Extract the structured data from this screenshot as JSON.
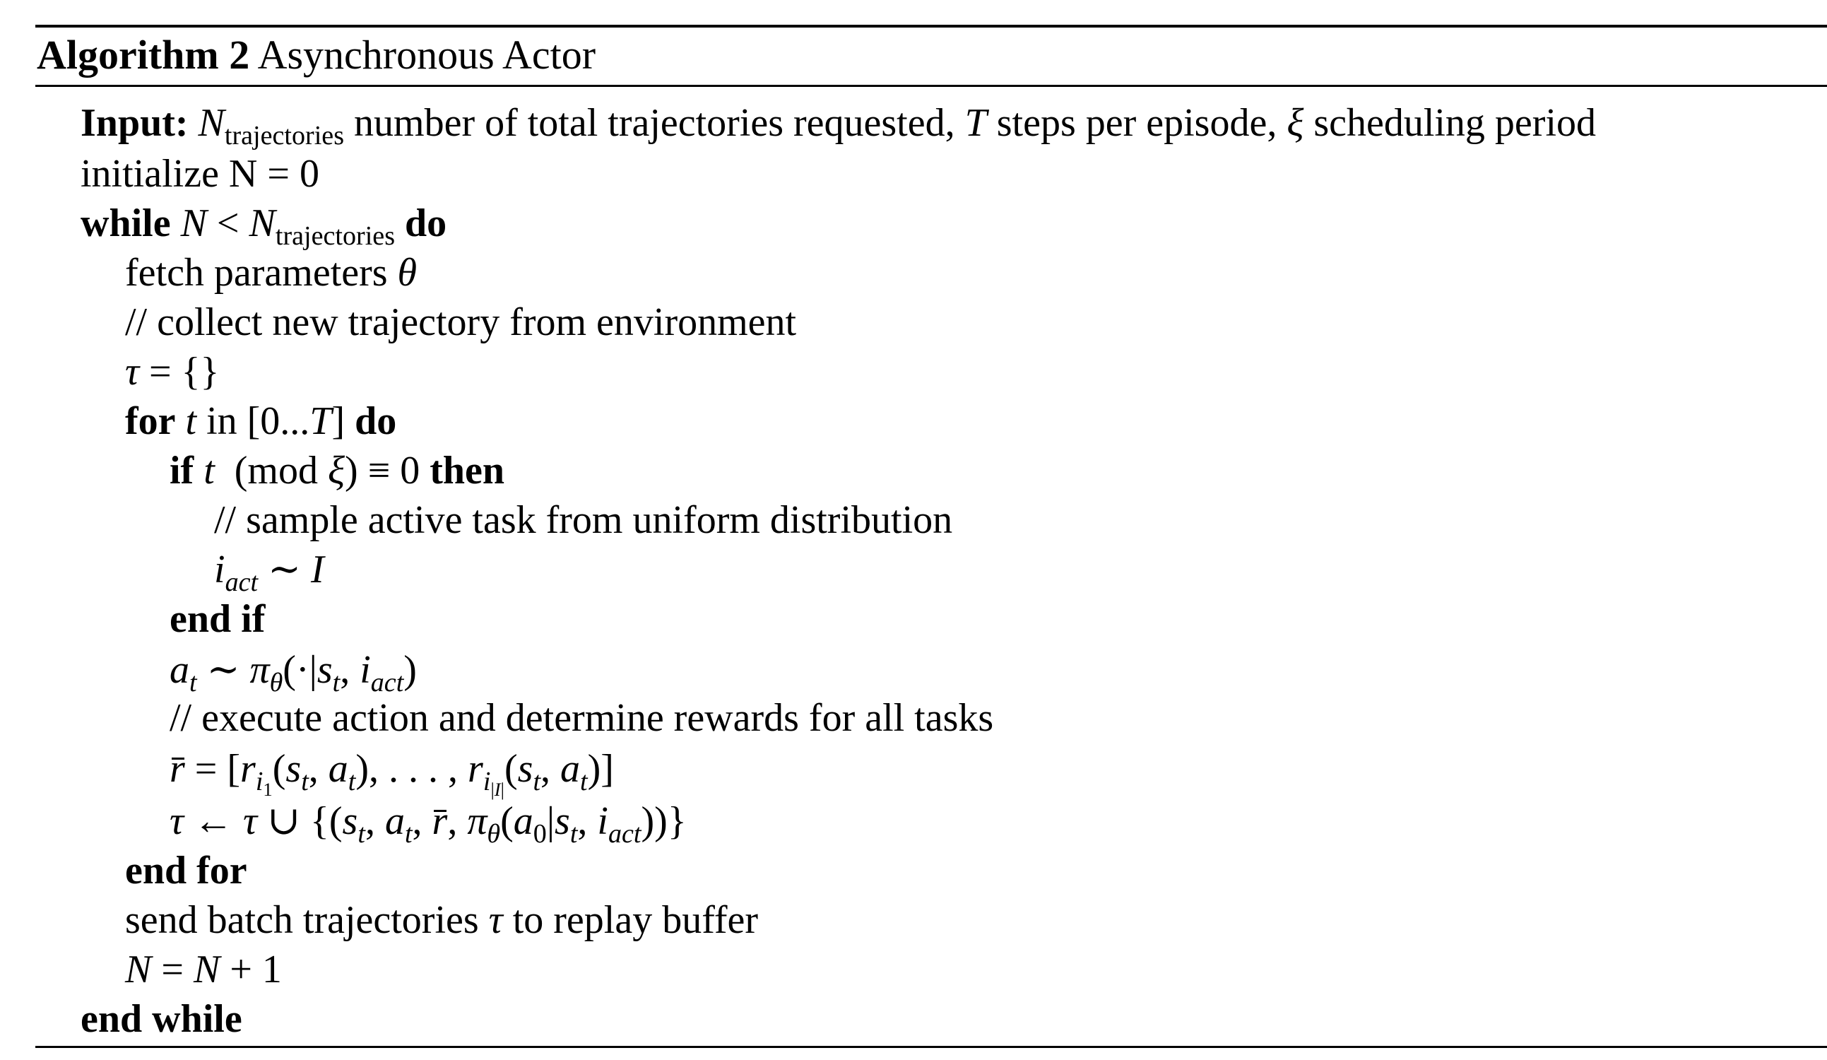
{
  "algorithm": {
    "label": "Algorithm 2",
    "title": "Asynchronous Actor"
  },
  "lines": {
    "input_kw": "Input:",
    "input_sub": "trajectories",
    "input_text_1": "number of total trajectories requested,",
    "input_text_2": "steps per episode,",
    "input_text_3": "scheduling period",
    "init": "initialize N = 0",
    "while_kw": "while",
    "while_sub": "trajectories",
    "do_kw": "do",
    "fetch": "fetch parameters",
    "comment_collect": "// collect new trajectory from environment",
    "for_kw": "for",
    "for_in": "in",
    "for_range": "[0...",
    "if_kw": "if",
    "if_mod": "(mod",
    "then_kw": "then",
    "comment_sample": "// sample active task from uniform distribution",
    "iact_sub": "act",
    "end_if": "end if",
    "comment_execute": "// execute action and determine rewards for all tasks",
    "end_for": "end for",
    "send_1": "send batch trajectories",
    "send_2": "to replay buffer",
    "end_while": "end while"
  }
}
